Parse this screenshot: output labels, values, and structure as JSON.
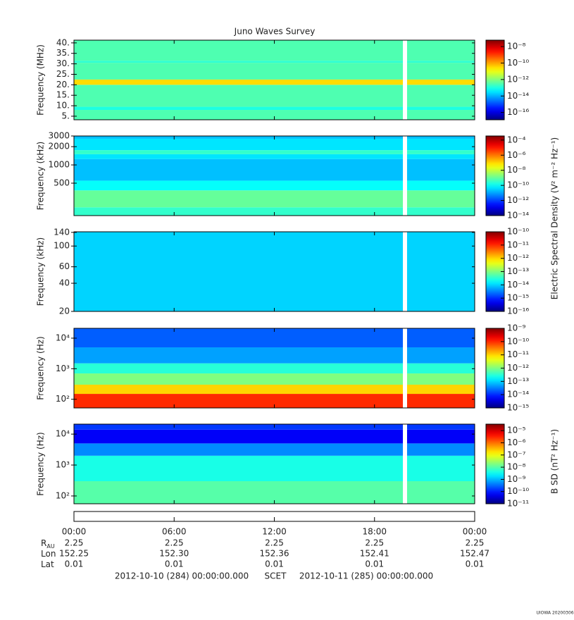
{
  "chart_data": {
    "type": "spectrogram",
    "title": "Juno Waves Survey",
    "colormap": "jet",
    "xlim": [
      0,
      24
    ],
    "xticks": [
      {
        "value": 0,
        "label": "00:00"
      },
      {
        "value": 6,
        "label": "06:00"
      },
      {
        "value": 12,
        "label": "12:00"
      },
      {
        "value": 18,
        "label": "18:00"
      },
      {
        "value": 24,
        "label": "00:00"
      }
    ],
    "gap": [
      19.7,
      19.95
    ],
    "panels": [
      {
        "ylabel": "Frequency (MHz)",
        "ylog": false,
        "ylim": [
          3.3,
          41.3
        ],
        "yticks": [
          {
            "value": 5,
            "label": "5."
          },
          {
            "value": 10,
            "label": "10."
          },
          {
            "value": 15,
            "label": "15."
          },
          {
            "value": 20,
            "label": "20."
          },
          {
            "value": 25,
            "label": "25."
          },
          {
            "value": 30,
            "label": "30."
          },
          {
            "value": 35,
            "label": "35."
          },
          {
            "value": 40,
            "label": "40."
          }
        ],
        "clim": [
          1.3e-17,
          6e-08
        ],
        "cticks": [
          {
            "value": 1e-08,
            "label": "10⁻⁸"
          },
          {
            "value": 1e-10,
            "label": "10⁻¹⁰"
          },
          {
            "value": 1e-12,
            "label": "10⁻¹²"
          },
          {
            "value": 1e-14,
            "label": "10⁻¹⁴"
          },
          {
            "value": 1e-16,
            "label": "10⁻¹⁶"
          }
        ],
        "bands": [
          {
            "y": [
              3.3,
              8
            ],
            "value": 3e-13
          },
          {
            "y": [
              8,
              9.5
            ],
            "value": 1e-13
          },
          {
            "y": [
              9.5,
              20
            ],
            "value": 3e-13
          },
          {
            "y": [
              20,
              22.5
            ],
            "value": 3e-11
          },
          {
            "y": [
              22.5,
              30.5
            ],
            "value": 3e-13
          },
          {
            "y": [
              30.5,
              31.5
            ],
            "value": 1.5e-13
          },
          {
            "y": [
              31.5,
              41.3
            ],
            "value": 3e-13
          }
        ]
      },
      {
        "ylabel": "Frequency (kHz)",
        "ylog": true,
        "ylim": [
          146,
          3000
        ],
        "yticks": [
          500,
          1000,
          2000,
          3000
        ],
        "clim": [
          1e-14,
          0.00035
        ],
        "cticks": [
          {
            "value": 0.0001,
            "label": "10⁻⁴"
          },
          {
            "value": 1e-06,
            "label": "10⁻⁶"
          },
          {
            "value": 1e-08,
            "label": "10⁻⁸"
          },
          {
            "value": 1e-10,
            "label": "10⁻¹⁰"
          },
          {
            "value": 1e-12,
            "label": "10⁻¹²"
          },
          {
            "value": 1e-14,
            "label": "10⁻¹⁴"
          }
        ],
        "bands": [
          {
            "y": [
              146,
              200
            ],
            "value": 3e-10
          },
          {
            "y": [
              200,
              380
            ],
            "value": 1e-09
          },
          {
            "y": [
              380,
              550
            ],
            "value": 1e-10
          },
          {
            "y": [
              550,
              1250
            ],
            "value": 2e-11
          },
          {
            "y": [
              1250,
              1500
            ],
            "value": 5e-11
          },
          {
            "y": [
              1500,
              1750
            ],
            "value": 3e-10
          },
          {
            "y": [
              1750,
              2700
            ],
            "value": 5e-11
          },
          {
            "y": [
              2700,
              3000
            ],
            "value": 2e-11
          }
        ]
      },
      {
        "ylabel": "Frequency (kHz)",
        "ylog": true,
        "ylim": [
          20,
          142
        ],
        "yticks": [
          20,
          40,
          60,
          100,
          140
        ],
        "clim": [
          1e-16,
          1e-10
        ],
        "cticks": [
          {
            "value": 1e-10,
            "label": "10⁻¹⁰"
          },
          {
            "value": 1e-11,
            "label": "10⁻¹¹"
          },
          {
            "value": 1e-12,
            "label": "10⁻¹²"
          },
          {
            "value": 1e-13,
            "label": "10⁻¹³"
          },
          {
            "value": 1e-14,
            "label": "10⁻¹⁴"
          },
          {
            "value": 1e-15,
            "label": "10⁻¹⁵"
          },
          {
            "value": 1e-16,
            "label": "10⁻¹⁶"
          }
        ],
        "bands": [
          {
            "y": [
              20,
              142
            ],
            "value": 1e-14
          }
        ]
      },
      {
        "ylabel": "Frequency (Hz)",
        "ylog": true,
        "ylim": [
          52,
          21000
        ],
        "yticks": [
          {
            "value": 100,
            "label": "10²"
          },
          {
            "value": 1000,
            "label": "10³"
          },
          {
            "value": 10000,
            "label": "10⁴"
          }
        ],
        "clim": [
          1e-15,
          1e-09
        ],
        "cticks": [
          {
            "value": 1e-09,
            "label": "10⁻⁹"
          },
          {
            "value": 1e-10,
            "label": "10⁻¹⁰"
          },
          {
            "value": 1e-11,
            "label": "10⁻¹¹"
          },
          {
            "value": 1e-12,
            "label": "10⁻¹²"
          },
          {
            "value": 1e-13,
            "label": "10⁻¹³"
          },
          {
            "value": 1e-14,
            "label": "10⁻¹⁴"
          },
          {
            "value": 1e-15,
            "label": "10⁻¹⁵"
          }
        ],
        "bands": [
          {
            "y": [
              52,
              150
            ],
            "value": 1e-10
          },
          {
            "y": [
              150,
              300
            ],
            "value": 1e-11
          },
          {
            "y": [
              300,
              700
            ],
            "value": 1e-12
          },
          {
            "y": [
              700,
              1500
            ],
            "value": 3e-13
          },
          {
            "y": [
              1500,
              5000
            ],
            "value": 5e-14
          },
          {
            "y": [
              5000,
              21000
            ],
            "value": 2e-14
          }
        ]
      },
      {
        "ylabel": "Frequency (Hz)",
        "ylog": true,
        "ylim": [
          56,
          21000
        ],
        "yticks": [
          {
            "value": 100,
            "label": "10²"
          },
          {
            "value": 1000,
            "label": "10³"
          },
          {
            "value": 10000,
            "label": "10⁴"
          }
        ],
        "clim": [
          1e-11,
          3.4e-05
        ],
        "cticks": [
          {
            "value": 1e-05,
            "label": "10⁻⁵"
          },
          {
            "value": 1e-06,
            "label": "10⁻⁶"
          },
          {
            "value": 1e-07,
            "label": "10⁻⁷"
          },
          {
            "value": 1e-08,
            "label": "10⁻⁸"
          },
          {
            "value": 1e-09,
            "label": "10⁻⁹"
          },
          {
            "value": 1e-10,
            "label": "10⁻¹⁰"
          },
          {
            "value": 1e-11,
            "label": "10⁻¹¹"
          }
        ],
        "bands": [
          {
            "y": [
              56,
              300
            ],
            "value": 1e-08
          },
          {
            "y": [
              300,
              2000
            ],
            "value": 4e-09
          },
          {
            "y": [
              2000,
              5000
            ],
            "value": 5e-10
          },
          {
            "y": [
              5000,
              14000
            ],
            "value": 6e-11
          },
          {
            "y": [
              14000,
              21000
            ],
            "value": 1.5e-10
          }
        ]
      }
    ],
    "colorbar_labels": [
      "Electric Spectral Density (V² m⁻² Hz⁻¹)",
      "B SD (nT² Hz⁻¹)"
    ],
    "ephemeris": [
      {
        "label": "R",
        "subscript": "AU",
        "values": [
          "2.25",
          "2.25",
          "2.25",
          "2.25",
          "2.25"
        ]
      },
      {
        "label": "Lon",
        "values": [
          "152.25",
          "152.30",
          "152.36",
          "152.41",
          "152.47"
        ]
      },
      {
        "label": "Lat",
        "values": [
          "0.01",
          "0.01",
          "0.01",
          "0.01",
          "0.01"
        ]
      }
    ],
    "time_range": {
      "start": "2012-10-10 (284) 00:00:00.000",
      "frame": "SCET",
      "end": "2012-10-11 (285) 00:00:00.000"
    },
    "credit": "UIOWA 20200306"
  }
}
